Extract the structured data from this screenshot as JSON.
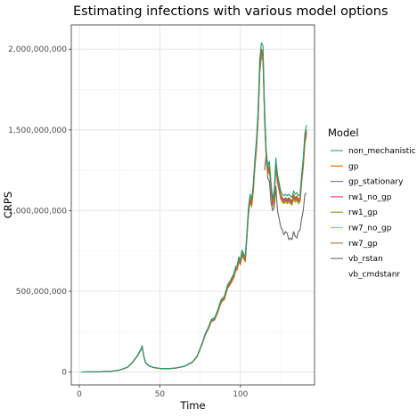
{
  "chart_data": {
    "type": "line",
    "title": "Estimating infections with various model options",
    "xlabel": "Time",
    "ylabel": "CRPS",
    "xlim": [
      -5,
      146
    ],
    "ylim": [
      -80000000,
      2150000000
    ],
    "x_ticks": [
      0,
      50,
      100
    ],
    "x_tick_labels": [
      "0",
      "50",
      "100"
    ],
    "y_ticks": [
      0,
      500000000,
      1000000000,
      1500000000,
      2000000000
    ],
    "y_tick_labels": [
      "0",
      "500,000,000",
      "1,000,000,000",
      "1,500,000,000",
      "2,000,000,000"
    ],
    "grid": true,
    "legend_position": "right",
    "legend_title": "Model",
    "base_x": [
      1,
      10,
      20,
      25,
      30,
      33,
      36,
      38,
      39,
      40,
      41,
      43,
      46,
      50,
      55,
      60,
      65,
      70,
      73,
      76,
      78,
      80,
      82,
      84,
      86,
      88,
      90,
      92,
      94,
      96,
      97,
      98,
      99,
      100,
      101,
      102,
      103,
      104,
      105,
      106,
      107,
      108,
      109,
      110,
      111,
      112,
      113,
      114,
      115,
      116,
      117,
      118,
      119,
      120,
      121,
      122,
      123,
      124,
      125,
      126,
      127,
      128,
      129,
      130,
      131,
      132,
      133,
      134,
      135,
      136,
      137,
      138,
      139,
      140,
      141
    ],
    "base_y": [
      0,
      1000000,
      5000000,
      12000000,
      30000000,
      60000000,
      100000000,
      135000000,
      160000000,
      100000000,
      60000000,
      40000000,
      28000000,
      22000000,
      20000000,
      25000000,
      35000000,
      60000000,
      95000000,
      170000000,
      230000000,
      270000000,
      320000000,
      330000000,
      380000000,
      440000000,
      460000000,
      530000000,
      560000000,
      600000000,
      640000000,
      650000000,
      700000000,
      680000000,
      740000000,
      720000000,
      700000000,
      850000000,
      1000000000,
      1080000000,
      1050000000,
      1150000000,
      1300000000,
      1420000000,
      1600000000,
      1900000000,
      2000000000,
      1980000000,
      1600000000,
      1350000000,
      1250000000,
      1280000000,
      1150000000,
      1050000000,
      1100000000,
      1300000000,
      1200000000,
      1150000000,
      1100000000,
      1080000000,
      1070000000,
      1080000000,
      1070000000,
      1080000000,
      1070000000,
      1060000000,
      1100000000,
      1080000000,
      1090000000,
      1070000000,
      1080000000,
      1200000000,
      1300000000,
      1450000000,
      1500000000
    ],
    "series": [
      {
        "name": "non_mechanistic",
        "color": "#1b9e77",
        "scale": 1.02,
        "start": 1
      },
      {
        "name": "gp",
        "color": "#d95f02",
        "scale": 1.0,
        "start": 1
      },
      {
        "name": "gp_stationary",
        "color": "#7570b3",
        "scale": 0.995,
        "start": 1
      },
      {
        "name": "rw1_no_gp",
        "color": "#e7298a",
        "scale": 0.99,
        "start": 1
      },
      {
        "name": "rw1_gp",
        "color": "#66a61e",
        "scale": 0.985,
        "start": 1
      },
      {
        "name": "rw7_no_gp",
        "color": "#e6ab02",
        "scale": 0.98,
        "start": 1
      },
      {
        "name": "rw7_gp",
        "color": "#a6761d",
        "scale": 0.975,
        "start": 1
      },
      {
        "name": "vb_rstan",
        "color": "#666666",
        "scale": 1.0,
        "start": 115,
        "x": [
          115,
          116,
          117,
          118,
          119,
          120,
          121,
          122,
          123,
          124,
          125,
          126,
          127,
          128,
          129,
          130,
          131,
          132,
          133,
          134,
          135,
          136,
          137,
          138,
          139,
          140,
          141
        ],
        "y": [
          1250000000,
          1350000000,
          1200000000,
          1180000000,
          1050000000,
          1000000000,
          1020000000,
          1150000000,
          1000000000,
          950000000,
          900000000,
          880000000,
          850000000,
          870000000,
          860000000,
          820000000,
          830000000,
          820000000,
          870000000,
          840000000,
          830000000,
          870000000,
          880000000,
          950000000,
          1000000000,
          1100000000,
          1110000000
        ]
      },
      {
        "name": "vb_cmdstanr",
        "color": null,
        "values": []
      }
    ]
  }
}
